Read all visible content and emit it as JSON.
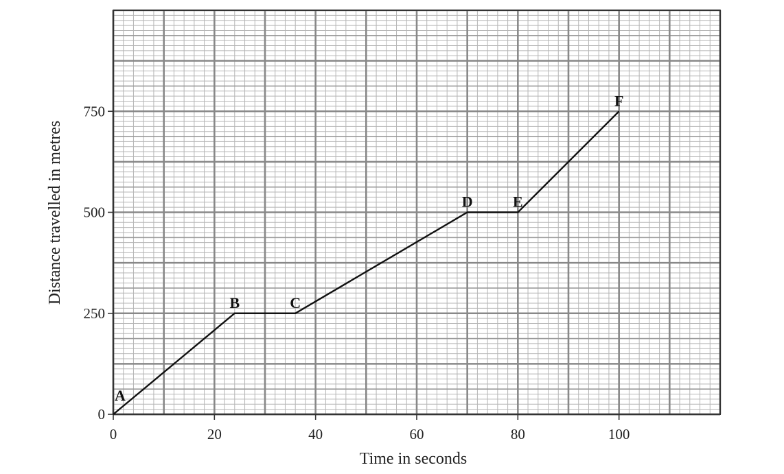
{
  "chart_data": {
    "type": "line",
    "title": "",
    "xlabel": "Time in seconds",
    "ylabel": "Distance travelled in metres",
    "xlim": [
      0,
      120
    ],
    "ylim": [
      0,
      1000
    ],
    "x_ticks": [
      0,
      20,
      40,
      60,
      80,
      100
    ],
    "y_ticks": [
      0,
      250,
      500,
      750
    ],
    "grid": "graph paper",
    "series": [
      {
        "points": [
          {
            "label": "A",
            "x": 0,
            "y": 0
          },
          {
            "label": "B",
            "x": 24,
            "y": 250
          },
          {
            "label": "C",
            "x": 36,
            "y": 250
          },
          {
            "label": "D",
            "x": 70,
            "y": 500
          },
          {
            "label": "E",
            "x": 80,
            "y": 500
          },
          {
            "label": "F",
            "x": 100,
            "y": 750
          }
        ]
      }
    ],
    "colors": {
      "line": "#111111",
      "grid_minor": "#b5b5b5",
      "grid_mid": "#9a9a9a",
      "grid_major": "#888888",
      "axis": "#333333"
    }
  }
}
